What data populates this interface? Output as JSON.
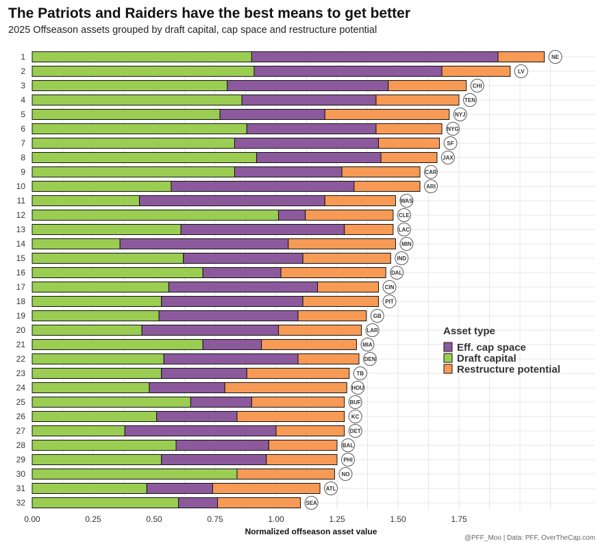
{
  "title": "The Patriots and Raiders have the best means to get better",
  "subtitle": "2025 Offseason assets grouped by draft capital, cap space and restructure potential",
  "caption": "@PFF_Moo | Data: PFF, OverTheCap.com",
  "colors": {
    "draft": "#9ACD52",
    "cap": "#8C5A9C",
    "restructure": "#F79A55",
    "grid": "#E6E6E6"
  },
  "chart_data": {
    "type": "bar",
    "orientation": "horizontal",
    "stacked": true,
    "xlabel": "Normalized offseason asset value",
    "xlim": [
      0,
      2.2
    ],
    "xticks": [
      0,
      0.25,
      0.5,
      0.75,
      1.0,
      1.25,
      1.5,
      1.75
    ],
    "xtick_labels": [
      "0.00",
      "0.25",
      "0.50",
      "0.75",
      "1.00",
      "1.25",
      "1.50",
      "1.75"
    ],
    "categories": [
      "1",
      "2",
      "3",
      "4",
      "5",
      "6",
      "7",
      "8",
      "9",
      "10",
      "11",
      "12",
      "13",
      "14",
      "15",
      "16",
      "17",
      "18",
      "19",
      "20",
      "21",
      "22",
      "23",
      "24",
      "25",
      "26",
      "27",
      "28",
      "29",
      "30",
      "31",
      "32"
    ],
    "teams": [
      "NE",
      "LV",
      "CHI",
      "TEN",
      "NYJ",
      "NYG",
      "SF",
      "JAX",
      "CAR",
      "ARI",
      "WAS",
      "CLE",
      "LAC",
      "MIN",
      "IND",
      "DAL",
      "CIN",
      "PIT",
      "GB",
      "LAR",
      "MIA",
      "DEN",
      "TB",
      "HOU",
      "BUF",
      "KC",
      "DET",
      "BAL",
      "PHI",
      "NO",
      "ATL",
      "SEA"
    ],
    "series": [
      {
        "name": "Draft capital",
        "key": "draft",
        "values": [
          0.9,
          0.91,
          0.8,
          0.86,
          0.77,
          0.88,
          0.83,
          0.92,
          0.83,
          0.57,
          0.44,
          1.01,
          0.61,
          0.36,
          0.62,
          0.7,
          0.56,
          0.53,
          0.52,
          0.45,
          0.7,
          0.54,
          0.53,
          0.48,
          0.65,
          0.51,
          0.38,
          0.59,
          0.53,
          0.84,
          0.47,
          0.6
        ]
      },
      {
        "name": "Eff. cap space",
        "key": "cap",
        "values": [
          1.01,
          0.77,
          0.66,
          0.55,
          0.43,
          0.53,
          0.59,
          0.51,
          0.44,
          0.75,
          0.76,
          0.11,
          0.67,
          0.69,
          0.49,
          0.32,
          0.61,
          0.58,
          0.57,
          0.56,
          0.24,
          0.55,
          0.35,
          0.31,
          0.25,
          0.33,
          0.62,
          0.38,
          0.43,
          0.0,
          0.27,
          0.16
        ]
      },
      {
        "name": "Restructure potential",
        "key": "restructure",
        "values": [
          0.19,
          0.28,
          0.32,
          0.34,
          0.51,
          0.27,
          0.25,
          0.23,
          0.32,
          0.27,
          0.29,
          0.36,
          0.2,
          0.44,
          0.36,
          0.43,
          0.25,
          0.31,
          0.28,
          0.34,
          0.39,
          0.25,
          0.42,
          0.5,
          0.38,
          0.44,
          0.28,
          0.28,
          0.29,
          0.4,
          0.44,
          0.34
        ]
      }
    ],
    "legend": {
      "title": "Asset type",
      "position": "right",
      "entries": [
        "Eff. cap space",
        "Draft capital",
        "Restructure potential"
      ]
    },
    "grid": true
  }
}
